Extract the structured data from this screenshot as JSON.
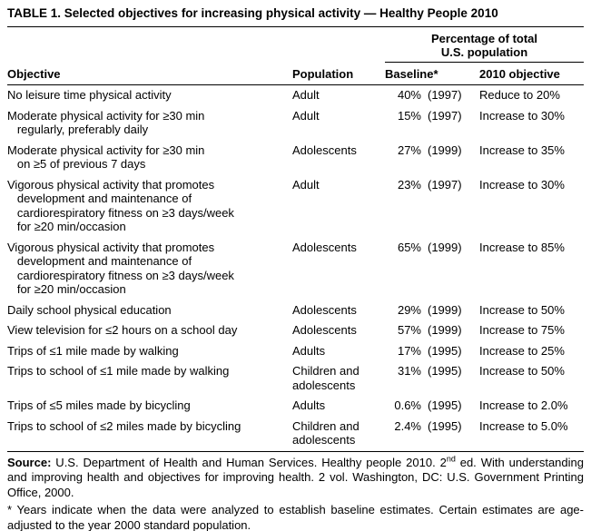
{
  "title": "TABLE 1. Selected objectives for increasing physical activity — Healthy People 2010",
  "table": {
    "group_header": "Percentage of total\nU.S. population",
    "columns": {
      "objective": "Objective",
      "population": "Population",
      "baseline": "Baseline*",
      "objective_2010": "2010 objective"
    },
    "rows": [
      {
        "objective": "No leisure time physical activity",
        "population": "Adult",
        "baseline_value": "40%",
        "baseline_year": "(1997)",
        "objective_2010": "Reduce to 20%"
      },
      {
        "objective": "Moderate physical activity for ≥30 min\n   regularly, preferably daily",
        "population": "Adult",
        "baseline_value": "15%",
        "baseline_year": "(1997)",
        "objective_2010": "Increase to 30%"
      },
      {
        "objective": "Moderate physical activity for ≥30 min\n   on ≥5 of previous 7 days",
        "population": "Adolescents",
        "baseline_value": "27%",
        "baseline_year": "(1999)",
        "objective_2010": "Increase to 35%"
      },
      {
        "objective": "Vigorous physical activity that promotes\n   development and maintenance of\n   cardiorespiratory fitness on ≥3 days/week\n   for ≥20 min/occasion",
        "population": "Adult",
        "baseline_value": "23%",
        "baseline_year": "(1997)",
        "objective_2010": "Increase to 30%"
      },
      {
        "objective": "Vigorous physical activity that promotes\n   development and maintenance of\n   cardiorespiratory fitness on ≥3 days/week\n   for ≥20 min/occasion",
        "population": "Adolescents",
        "baseline_value": "65%",
        "baseline_year": "(1999)",
        "objective_2010": "Increase to 85%"
      },
      {
        "objective": "Daily school physical education",
        "population": "Adolescents",
        "baseline_value": "29%",
        "baseline_year": "(1999)",
        "objective_2010": "Increase to 50%"
      },
      {
        "objective": "View television for ≤2 hours on a school day",
        "population": "Adolescents",
        "baseline_value": "57%",
        "baseline_year": "(1999)",
        "objective_2010": "Increase to 75%"
      },
      {
        "objective": "Trips of ≤1 mile made by walking",
        "population": "Adults",
        "baseline_value": "17%",
        "baseline_year": "(1995)",
        "objective_2010": "Increase to 25%"
      },
      {
        "objective": "Trips to school of ≤1 mile made by walking",
        "population": "Children and\nadolescents",
        "baseline_value": "31%",
        "baseline_year": "(1995)",
        "objective_2010": "Increase to 50%"
      },
      {
        "objective": "Trips of ≤5 miles made by bicycling",
        "population": "Adults",
        "baseline_value": "0.6%",
        "baseline_year": "(1995)",
        "objective_2010": "Increase to 2.0%"
      },
      {
        "objective": "Trips to school of ≤2 miles made by bicycling",
        "population": "Children and\nadolescents",
        "baseline_value": "2.4%",
        "baseline_year": "(1995)",
        "objective_2010": "Increase to 5.0%"
      }
    ]
  },
  "footer": {
    "source_label": "Source:",
    "source_text_1": " U.S. Department of Health and Human Services. Healthy people 2010. 2",
    "source_superscript": "nd",
    "source_text_2": " ed. With understanding and improving health and objectives for improving health. 2 vol. Washington, DC: U.S. Government Printing Office, 2000.",
    "asterisk_note": "* Years indicate when the data were analyzed to establish baseline estimates. Certain estimates are age-adjusted to the year 2000 standard population."
  }
}
